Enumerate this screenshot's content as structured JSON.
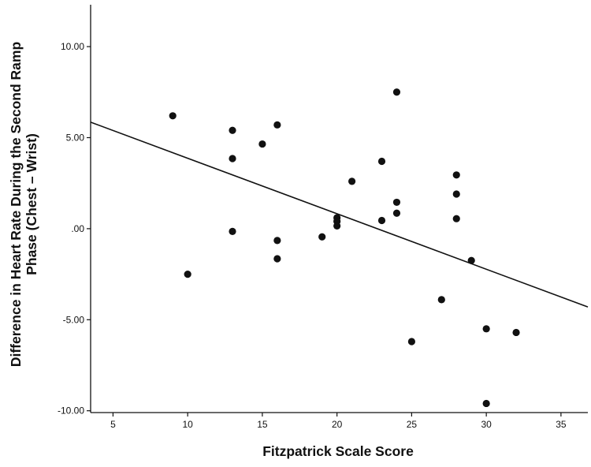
{
  "chart_data": {
    "type": "scatter",
    "title": "",
    "xlabel": "Fitzpatrick Scale Score",
    "ylabel_lines": [
      "Difference in Heart Rate During the Second Ramp",
      "Phase (Chest – Wrist)"
    ],
    "xlim": [
      3.5,
      36.8
    ],
    "ylim": [
      -10.1,
      12.3
    ],
    "xticks": [
      5,
      10,
      15,
      20,
      25,
      30,
      35
    ],
    "xtick_labels": [
      "5",
      "10",
      "15",
      "20",
      "25",
      "30",
      "35"
    ],
    "yticks": [
      10,
      5,
      0,
      -5,
      -10
    ],
    "ytick_labels": [
      "10.00",
      "5.00",
      ".00",
      "-5.00",
      "-10.00"
    ],
    "grid": false,
    "legend": "none",
    "points": [
      {
        "x": 9,
        "y": 6.2
      },
      {
        "x": 10,
        "y": -2.5
      },
      {
        "x": 13,
        "y": 5.4
      },
      {
        "x": 13,
        "y": 3.85
      },
      {
        "x": 13,
        "y": -0.15
      },
      {
        "x": 15,
        "y": 4.65
      },
      {
        "x": 16,
        "y": 5.7
      },
      {
        "x": 16,
        "y": -0.65
      },
      {
        "x": 16,
        "y": -1.65
      },
      {
        "x": 19,
        "y": -0.45
      },
      {
        "x": 20,
        "y": 0.6
      },
      {
        "x": 20,
        "y": 0.4
      },
      {
        "x": 20,
        "y": 0.15
      },
      {
        "x": 21,
        "y": 2.6
      },
      {
        "x": 23,
        "y": 3.7
      },
      {
        "x": 23,
        "y": 0.45
      },
      {
        "x": 24,
        "y": 7.5
      },
      {
        "x": 24,
        "y": 1.45
      },
      {
        "x": 24,
        "y": 0.85
      },
      {
        "x": 25,
        "y": -6.2
      },
      {
        "x": 27,
        "y": -3.9
      },
      {
        "x": 28,
        "y": 2.95
      },
      {
        "x": 28,
        "y": 1.9
      },
      {
        "x": 28,
        "y": 0.55
      },
      {
        "x": 29,
        "y": -1.75
      },
      {
        "x": 30,
        "y": -5.5
      },
      {
        "x": 30,
        "y": -9.6
      },
      {
        "x": 32,
        "y": -5.7
      }
    ],
    "fit_line": {
      "x": [
        3.5,
        36.8
      ],
      "y": [
        5.85,
        -4.3
      ]
    },
    "colors": {
      "points": "#111111",
      "line": "#111111",
      "axis": "#111111"
    }
  }
}
